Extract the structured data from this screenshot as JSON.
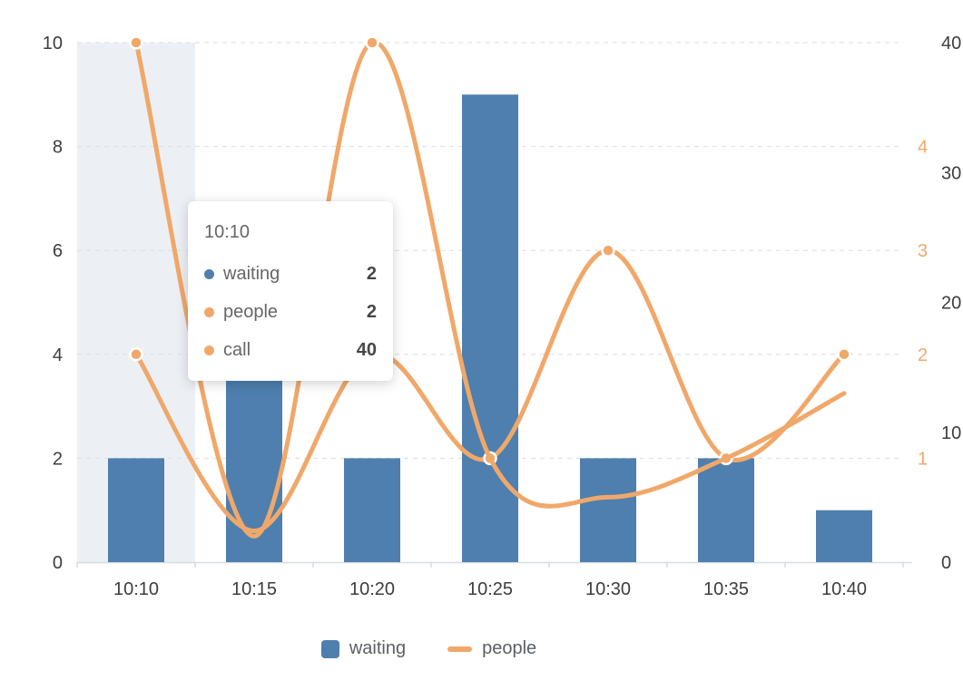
{
  "colors": {
    "bar_blue": "#4E7FAE",
    "line_orange": "#F0A86A",
    "axis_dark": "#3D3D3D",
    "grid_gray": "#DDDDDD",
    "axis_line_gray": "#D8DCE0",
    "hover_band": "rgba(97,130,170,0.12)",
    "legend_text": "#5A6066"
  },
  "chart_data": {
    "type": "mixed-bar-line",
    "categories": [
      "10:10",
      "10:15",
      "10:20",
      "10:25",
      "10:30",
      "10:35",
      "10:40"
    ],
    "series": [
      {
        "name": "waiting",
        "type": "bar",
        "y_axis": "left",
        "color": "#4E7FAE",
        "values": [
          2,
          6,
          2,
          9,
          2,
          2,
          1
        ]
      },
      {
        "name": "people",
        "type": "line",
        "y_axis": "right_people",
        "color": "#F0A86A",
        "smooth": true,
        "values": [
          2,
          0.3,
          2,
          1,
          3,
          1,
          2
        ],
        "marker_indices": [
          0,
          3,
          4,
          5,
          6
        ]
      },
      {
        "name": "call",
        "type": "line",
        "y_axis": "right_call",
        "color": "#F0A86A",
        "smooth": true,
        "values": [
          40,
          2,
          40,
          8,
          5,
          8,
          13
        ],
        "marker_indices": [
          0,
          2
        ]
      }
    ],
    "axes": {
      "left": {
        "min": 0,
        "max": 10,
        "ticks": [
          0,
          2,
          4,
          6,
          8,
          10
        ],
        "label_color": "#3D3D3D"
      },
      "right_people": {
        "min": 0,
        "max": 5,
        "ticks": [
          1,
          2,
          3,
          4
        ],
        "label_color": "#F0A86A"
      },
      "right_call": {
        "min": 0,
        "max": 40,
        "ticks": [
          0,
          10,
          20,
          30,
          40
        ],
        "label_color": "#3D3D3D"
      }
    },
    "grid": {
      "horizontal_dashed": true,
      "color": "#DDDDDD"
    },
    "highlight": {
      "category": "10:10",
      "color": "rgba(97,130,170,0.12)"
    },
    "legend_position": "bottom-center"
  },
  "tooltip": {
    "title": "10:10",
    "rows": [
      {
        "label": "waiting",
        "value": "2",
        "color": "#4E7FAE"
      },
      {
        "label": "people",
        "value": "2",
        "color": "#F0A86A"
      },
      {
        "label": "call",
        "value": "40",
        "color": "#F0A86A"
      }
    ]
  },
  "legend": {
    "items": [
      {
        "label": "waiting",
        "marker": "square",
        "color": "#4E7FAE"
      },
      {
        "label": "people",
        "marker": "line",
        "color": "#F0A86A"
      }
    ]
  }
}
